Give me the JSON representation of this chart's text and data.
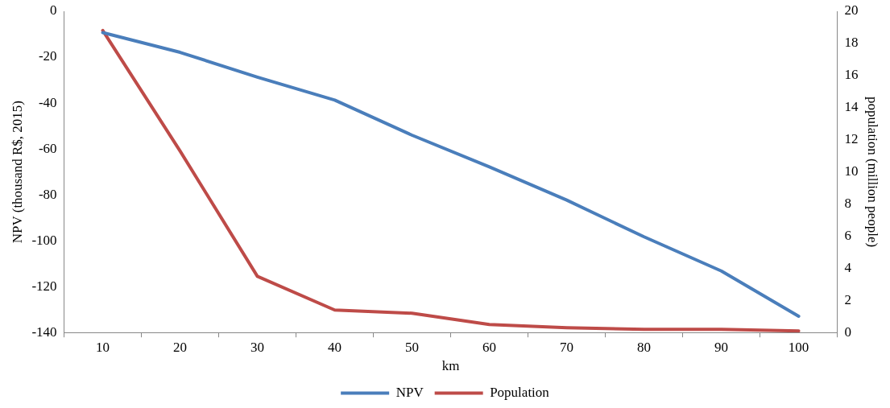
{
  "chart_data": {
    "type": "line",
    "xlabel": "km",
    "ylabel": "NPV (thousand R$, 2015)",
    "y2label": "population (million people)",
    "categories": [
      "10",
      "20",
      "30",
      "40",
      "50",
      "60",
      "70",
      "80",
      "90",
      "100"
    ],
    "series": [
      {
        "name": "NPV",
        "color": "#4a7ebb",
        "values": [
          -9.3,
          -17.9,
          -28.7,
          -38.7,
          -54,
          -67.8,
          -82.3,
          -98.3,
          -113.2,
          -132.9
        ]
      },
      {
        "name": "Population",
        "color": "#be4b48",
        "axis": "y2",
        "values": [
          18.8,
          11.3,
          3.5,
          1.4,
          1.2,
          0.5,
          0.3,
          0.2,
          0.2,
          0.1
        ]
      }
    ],
    "ylim": [
      -140,
      0
    ],
    "yticks": [
      -140,
      -120,
      -100,
      -80,
      -60,
      -40,
      -20,
      0
    ],
    "y2lim": [
      0,
      20
    ],
    "y2ticks": [
      0,
      2,
      4,
      6,
      8,
      10,
      12,
      14,
      16,
      18,
      20
    ],
    "grid": false,
    "legend": "bottom",
    "marker": "none",
    "line_style": "solid"
  }
}
